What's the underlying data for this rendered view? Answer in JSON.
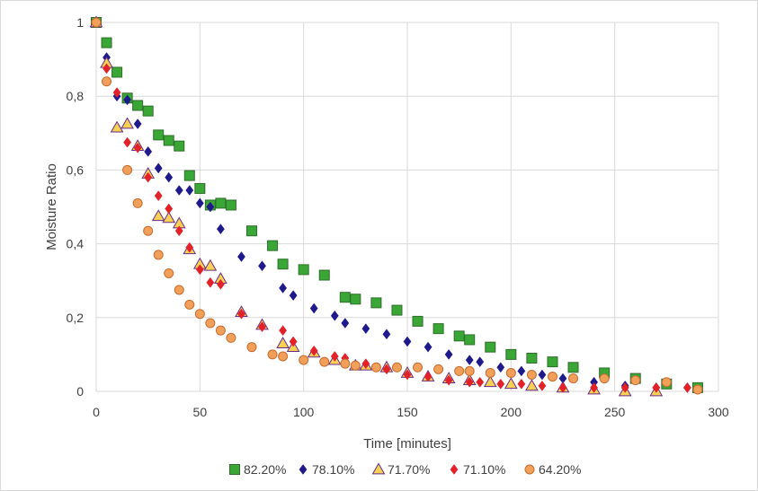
{
  "chart_data": {
    "type": "scatter",
    "title": "",
    "xlabel": "Time [minutes]",
    "ylabel": "Moisture Ratio",
    "xlim": [
      0,
      300
    ],
    "ylim": [
      0,
      1
    ],
    "x_ticks": [
      0,
      50,
      100,
      150,
      200,
      250,
      300
    ],
    "y_ticks": [
      0,
      0.2,
      0.4,
      0.6,
      0.8,
      1
    ],
    "y_tick_labels": [
      "0",
      "0,2",
      "0,4",
      "0,6",
      "0,8",
      "1"
    ],
    "grid": true,
    "legend_position": "bottom",
    "series": [
      {
        "name": "82.20%",
        "marker": "square",
        "color": "#3aa635",
        "x": [
          0,
          5,
          10,
          15,
          20,
          25,
          30,
          35,
          40,
          45,
          50,
          55,
          60,
          65,
          75,
          85,
          90,
          100,
          110,
          120,
          125,
          135,
          145,
          155,
          165,
          175,
          180,
          190,
          200,
          210,
          220,
          230,
          245,
          260,
          275,
          290
        ],
        "y": [
          1,
          0.945,
          0.865,
          0.795,
          0.775,
          0.76,
          0.695,
          0.68,
          0.665,
          0.585,
          0.55,
          0.505,
          0.51,
          0.505,
          0.435,
          0.395,
          0.345,
          0.33,
          0.315,
          0.255,
          0.25,
          0.24,
          0.22,
          0.19,
          0.17,
          0.15,
          0.14,
          0.12,
          0.1,
          0.09,
          0.08,
          0.065,
          0.05,
          0.035,
          0.02,
          0.01
        ]
      },
      {
        "name": "78.10%",
        "marker": "diamond",
        "color": "#1f1a8c",
        "x": [
          0,
          5,
          10,
          15,
          20,
          25,
          30,
          35,
          40,
          45,
          50,
          55,
          60,
          70,
          80,
          90,
          95,
          105,
          115,
          120,
          130,
          140,
          150,
          160,
          170,
          180,
          185,
          195,
          205,
          215,
          225,
          240,
          255,
          270,
          285
        ],
        "y": [
          1,
          0.905,
          0.8,
          0.79,
          0.725,
          0.65,
          0.605,
          0.58,
          0.545,
          0.545,
          0.51,
          0.5,
          0.44,
          0.365,
          0.34,
          0.28,
          0.26,
          0.225,
          0.205,
          0.185,
          0.17,
          0.155,
          0.135,
          0.12,
          0.1,
          0.085,
          0.08,
          0.065,
          0.055,
          0.045,
          0.035,
          0.025,
          0.015,
          0.01,
          0.01
        ]
      },
      {
        "name": "71.70%",
        "marker": "triangle",
        "color": "#f7d154",
        "edge": "#6a2a8a",
        "x": [
          0,
          5,
          10,
          15,
          20,
          25,
          30,
          35,
          40,
          45,
          50,
          55,
          60,
          70,
          80,
          90,
          95,
          105,
          115,
          125,
          130,
          140,
          150,
          160,
          170,
          180,
          190,
          200,
          210,
          225,
          240,
          255,
          270
        ],
        "y": [
          1,
          0.89,
          0.715,
          0.725,
          0.665,
          0.59,
          0.475,
          0.47,
          0.455,
          0.385,
          0.345,
          0.34,
          0.305,
          0.215,
          0.18,
          0.13,
          0.12,
          0.105,
          0.085,
          0.07,
          0.07,
          0.065,
          0.05,
          0.04,
          0.035,
          0.03,
          0.025,
          0.02,
          0.015,
          0.01,
          0.005,
          0.0,
          0.0
        ]
      },
      {
        "name": "71.10%",
        "marker": "diamond",
        "color": "#e32129",
        "x": [
          0,
          5,
          10,
          15,
          20,
          25,
          30,
          35,
          40,
          45,
          50,
          55,
          60,
          70,
          80,
          90,
          95,
          105,
          115,
          120,
          130,
          140,
          150,
          160,
          170,
          180,
          185,
          195,
          205,
          215,
          225,
          240,
          255,
          270,
          285
        ],
        "y": [
          1,
          0.875,
          0.81,
          0.675,
          0.66,
          0.58,
          0.53,
          0.495,
          0.435,
          0.39,
          0.33,
          0.295,
          0.29,
          0.21,
          0.175,
          0.165,
          0.135,
          0.11,
          0.095,
          0.09,
          0.075,
          0.06,
          0.045,
          0.04,
          0.03,
          0.025,
          0.025,
          0.02,
          0.02,
          0.015,
          0.01,
          0.01,
          0.01,
          0.01,
          0.01
        ]
      },
      {
        "name": "64.20%",
        "marker": "circle",
        "color": "#f0a058",
        "edge": "#c96b30",
        "x": [
          0,
          5,
          15,
          20,
          25,
          30,
          35,
          40,
          45,
          50,
          55,
          60,
          65,
          75,
          85,
          90,
          100,
          110,
          120,
          125,
          135,
          145,
          155,
          165,
          175,
          180,
          190,
          200,
          210,
          220,
          230,
          245,
          260,
          275,
          290
        ],
        "y": [
          1,
          0.84,
          0.6,
          0.51,
          0.435,
          0.37,
          0.32,
          0.275,
          0.235,
          0.21,
          0.185,
          0.165,
          0.145,
          0.12,
          0.1,
          0.095,
          0.085,
          0.08,
          0.075,
          0.07,
          0.065,
          0.065,
          0.065,
          0.06,
          0.055,
          0.055,
          0.05,
          0.05,
          0.045,
          0.04,
          0.035,
          0.035,
          0.03,
          0.025,
          0.005
        ]
      }
    ]
  }
}
